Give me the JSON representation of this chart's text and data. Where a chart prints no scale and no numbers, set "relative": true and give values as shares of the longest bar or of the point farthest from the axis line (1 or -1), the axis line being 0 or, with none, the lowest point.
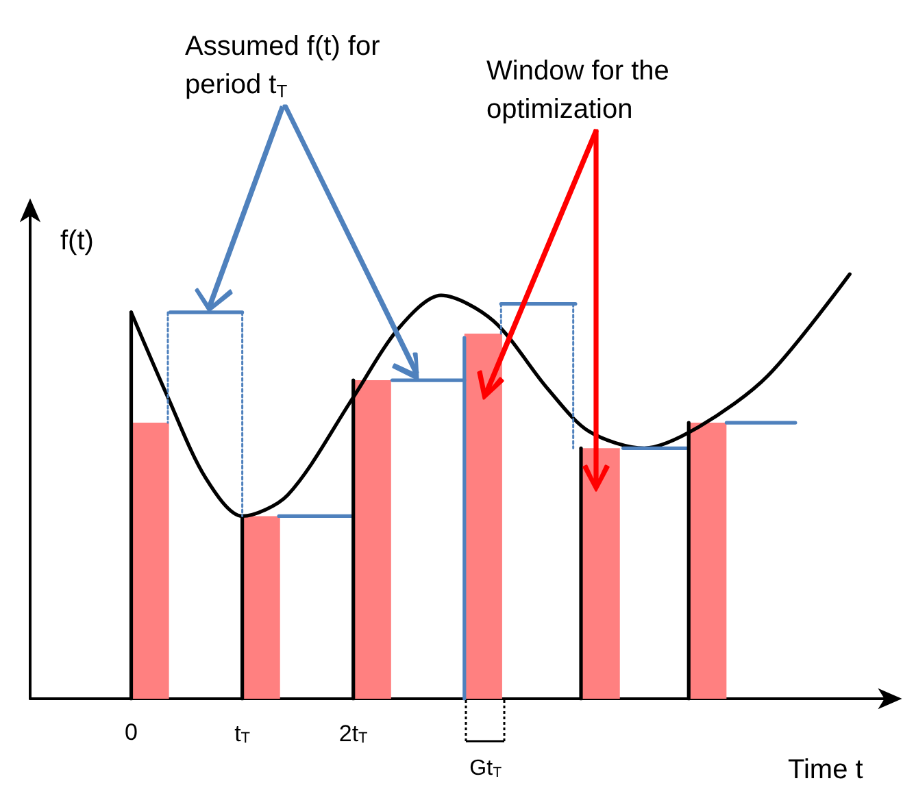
{
  "chart_data": {
    "type": "line",
    "relative": true,
    "xlabel": "Time t",
    "ylabel": "f(t)",
    "xlim": [
      -0.91,
      6.9
    ],
    "xticks": [
      {
        "value": 0,
        "label": "0"
      },
      {
        "value": 1,
        "label": "t$_{T}$"
      },
      {
        "value": 2,
        "label": "2t$_{T}$"
      }
    ],
    "series": [
      {
        "type": "bar",
        "color": "#ff8080",
        "x": [
          0.17,
          1.17,
          2.17,
          3.17,
          4.23,
          5.19
        ],
        "values": [
          0.65,
          0.43,
          0.75,
          0.86,
          0.59,
          0.65
        ]
      },
      {
        "color": "#000000",
        "x": [
          0,
          0.33,
          0.67,
          1,
          1.41,
          2,
          2.4,
          2.79,
          3.26,
          3.75,
          4.12,
          4.62,
          5.11,
          5.73,
          6.47
        ],
        "values": [
          0.91,
          0.71,
          0.52,
          0.43,
          0.48,
          0.71,
          0.87,
          0.95,
          0.89,
          0.73,
          0.63,
          0.59,
          0.64,
          0.76,
          1
        ]
      },
      {
        "color": "#4f81bd",
        "x": [
          0.35,
          1.0
        ],
        "values": [
          0.91,
          0.91
        ]
      },
      {
        "color": "#4f81bd",
        "x": [
          1.33,
          1.98
        ],
        "values": [
          0.43,
          0.43
        ]
      },
      {
        "color": "#4f81bd",
        "x": [
          2.35,
          3.0
        ],
        "values": [
          0.75,
          0.75
        ]
      },
      {
        "color": "#4f81bd",
        "x": [
          3.33,
          4.0
        ],
        "values": [
          0.93,
          0.93
        ]
      },
      {
        "color": "#4f81bd",
        "x": [
          4.43,
          5.0
        ],
        "values": [
          0.59,
          0.59
        ]
      },
      {
        "color": "#4f81bd",
        "x": [
          5.36,
          5.98
        ],
        "values": [
          0.65,
          0.65
        ]
      },
      {
        "color": "#000000",
        "x": [
          0,
          0
        ],
        "values": [
          0,
          0.91
        ]
      },
      {
        "color": "#000000",
        "x": [
          1,
          1
        ],
        "values": [
          0,
          0.43
        ]
      },
      {
        "color": "#000000",
        "x": [
          2,
          2
        ],
        "values": [
          0,
          0.75
        ]
      },
      {
        "color": "#4f81bd",
        "x": [
          3,
          3
        ],
        "values": [
          0,
          0.85
        ]
      },
      {
        "color": "#000000",
        "x": [
          4.05,
          4.05
        ],
        "values": [
          0,
          0.59
        ]
      },
      {
        "color": "#000000",
        "x": [
          5.02,
          5.02
        ],
        "values": [
          0,
          0.65
        ]
      },
      {
        "color": "#4f81bd",
        "line_style": "dotted",
        "x": [
          0.33,
          0.33
        ],
        "values": [
          0.91,
          0.65
        ]
      },
      {
        "color": "#4f81bd",
        "line_style": "dotted",
        "x": [
          1,
          1
        ],
        "values": [
          0.91,
          0.43
        ]
      },
      {
        "color": "#4f81bd",
        "line_style": "dotted",
        "x": [
          3.33,
          3.33
        ],
        "values": [
          0.93,
          0.86
        ]
      },
      {
        "color": "#4f81bd",
        "line_style": "dotted",
        "x": [
          3.98,
          3.98
        ],
        "values": [
          0.93,
          0.59
        ]
      }
    ],
    "annotations": [
      "Assumed f(t) for period t$_{T}$",
      "Window for the optimization",
      "Gt$_{T}$"
    ],
    "marker": "none",
    "line_style": "solid"
  }
}
